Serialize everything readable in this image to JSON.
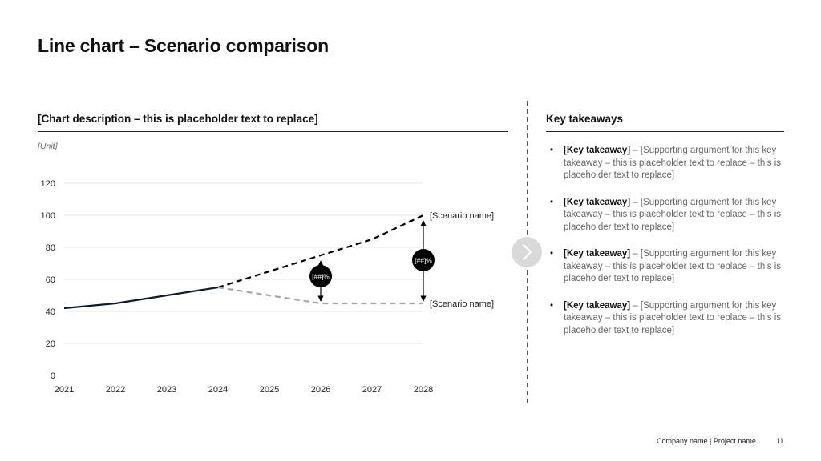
{
  "page": {
    "title": "Line chart – Scenario comparison",
    "chart_description": "[Chart description – this is placeholder text to replace]",
    "unit": "[Unit]"
  },
  "key_takeaways": {
    "title": "Key takeaways",
    "items": [
      {
        "bold": "[Key takeaway]",
        "text": " – [Supporting argument for this key takeaway – this is placeholder text to replace – this is placeholder text to replace]"
      },
      {
        "bold": "[Key takeaway]",
        "text": " – [Supporting argument for this key takeaway – this is placeholder text to replace – this is placeholder text to replace]"
      },
      {
        "bold": "[Key takeaway]",
        "text": " – [Supporting argument for this key takeaway – this is placeholder text to replace – this is placeholder text to replace]"
      },
      {
        "bold": "[Key takeaway]",
        "text": " – [Supporting argument for this key takeaway – this is placeholder text to replace – this is placeholder text to replace]"
      }
    ]
  },
  "footer": {
    "company_project": "Company name | Project name",
    "page_number": "11"
  },
  "icons": {
    "next": "chevron-right-icon"
  },
  "chart_data": {
    "type": "line",
    "x": [
      2021,
      2022,
      2023,
      2024,
      2025,
      2026,
      2027,
      2028
    ],
    "xlim": [
      2021,
      2028
    ],
    "ylim": [
      0,
      120
    ],
    "yticks": [
      0,
      20,
      40,
      60,
      80,
      100,
      120
    ],
    "grid": true,
    "series": [
      {
        "x": [
          2021,
          2022,
          2023,
          2024
        ],
        "values": [
          42,
          45,
          50,
          55
        ],
        "color": "#0d1b2a",
        "style": "solid"
      },
      {
        "name": "[Scenario name]",
        "x": [
          2024,
          2025,
          2026,
          2027,
          2028
        ],
        "values": [
          55,
          65,
          75,
          85,
          100
        ],
        "color": "#000000",
        "style": "dashed"
      },
      {
        "name": "[Scenario name]",
        "x": [
          2024,
          2025,
          2026,
          2027,
          2028
        ],
        "values": [
          55,
          50,
          45,
          45,
          45
        ],
        "color": "#a6a6a6",
        "style": "dashed"
      }
    ],
    "annotations": [
      {
        "x": 2026,
        "from": 45,
        "to": 75,
        "label": "[##]%",
        "label_y": 62
      },
      {
        "x": 2028,
        "from": 45,
        "to": 100,
        "label": "[##]%",
        "label_y": 72
      }
    ]
  }
}
